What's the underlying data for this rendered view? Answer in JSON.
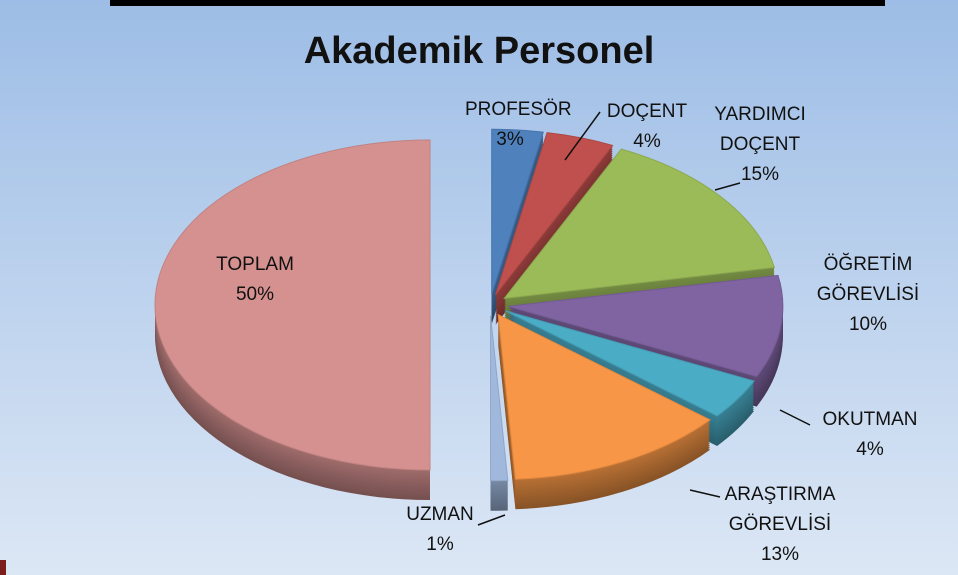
{
  "chart_data": {
    "type": "pie3d",
    "title": "Akademik Personel",
    "categories": [
      "PROFESÖR",
      "DOÇENT",
      "YARDIMCI DOÇENT",
      "ÖĞRETİM GÖREVLİSİ",
      "OKUTMAN",
      "ARAŞTIRMA GÖREVLİSİ",
      "UZMAN",
      "TOPLAM"
    ],
    "values": [
      3,
      4,
      15,
      10,
      4,
      13,
      1,
      50
    ],
    "value_labels": [
      "3%",
      "4%",
      "15%",
      "10%",
      "4%",
      "13%",
      "1%",
      "50%"
    ],
    "colors": [
      "#4f81bd",
      "#c0504d",
      "#9bbb59",
      "#8064a2",
      "#4bacc6",
      "#f79646",
      "#9fb8dc",
      "#d59190"
    ]
  }
}
